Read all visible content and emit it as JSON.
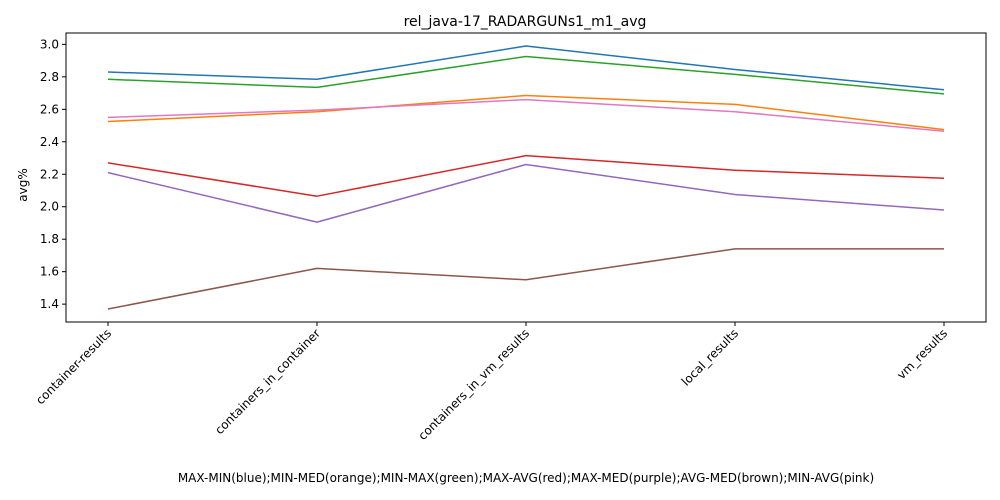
{
  "chart_data": {
    "type": "line",
    "title": "rel_java-17_RADARGUNs1_m1_avg",
    "xlabel": "MAX-MIN(blue);MIN-MED(orange);MIN-MAX(green);MAX-AVG(red);MAX-MED(purple);AVG-MED(brown);MIN-AVG(pink)",
    "ylabel": "avg%",
    "ylim": [
      1.29,
      3.07
    ],
    "yticks": [
      "1.4",
      "1.6",
      "1.8",
      "2.0",
      "2.2",
      "2.4",
      "2.6",
      "2.8",
      "3.0"
    ],
    "categories": [
      "container-results",
      "containers_in_container",
      "containers_in_vm_results",
      "local_results",
      "vm_results"
    ],
    "grid": false,
    "series": [
      {
        "color": "#1f77b4",
        "values": [
          2.83,
          2.785,
          2.99,
          2.845,
          2.72
        ]
      },
      {
        "color": "#ff7f0e",
        "values": [
          2.525,
          2.585,
          2.685,
          2.63,
          2.475
        ]
      },
      {
        "color": "#2ca02c",
        "values": [
          2.785,
          2.735,
          2.925,
          2.815,
          2.695
        ]
      },
      {
        "color": "#d62728",
        "values": [
          2.27,
          2.065,
          2.315,
          2.225,
          2.175
        ]
      },
      {
        "color": "#9467bd",
        "values": [
          2.21,
          1.905,
          2.26,
          2.075,
          1.98
        ]
      },
      {
        "color": "#8c564b",
        "values": [
          1.37,
          1.62,
          1.55,
          1.74,
          1.74
        ]
      },
      {
        "color": "#e377c2",
        "values": [
          2.55,
          2.595,
          2.66,
          2.585,
          2.465
        ]
      }
    ]
  }
}
